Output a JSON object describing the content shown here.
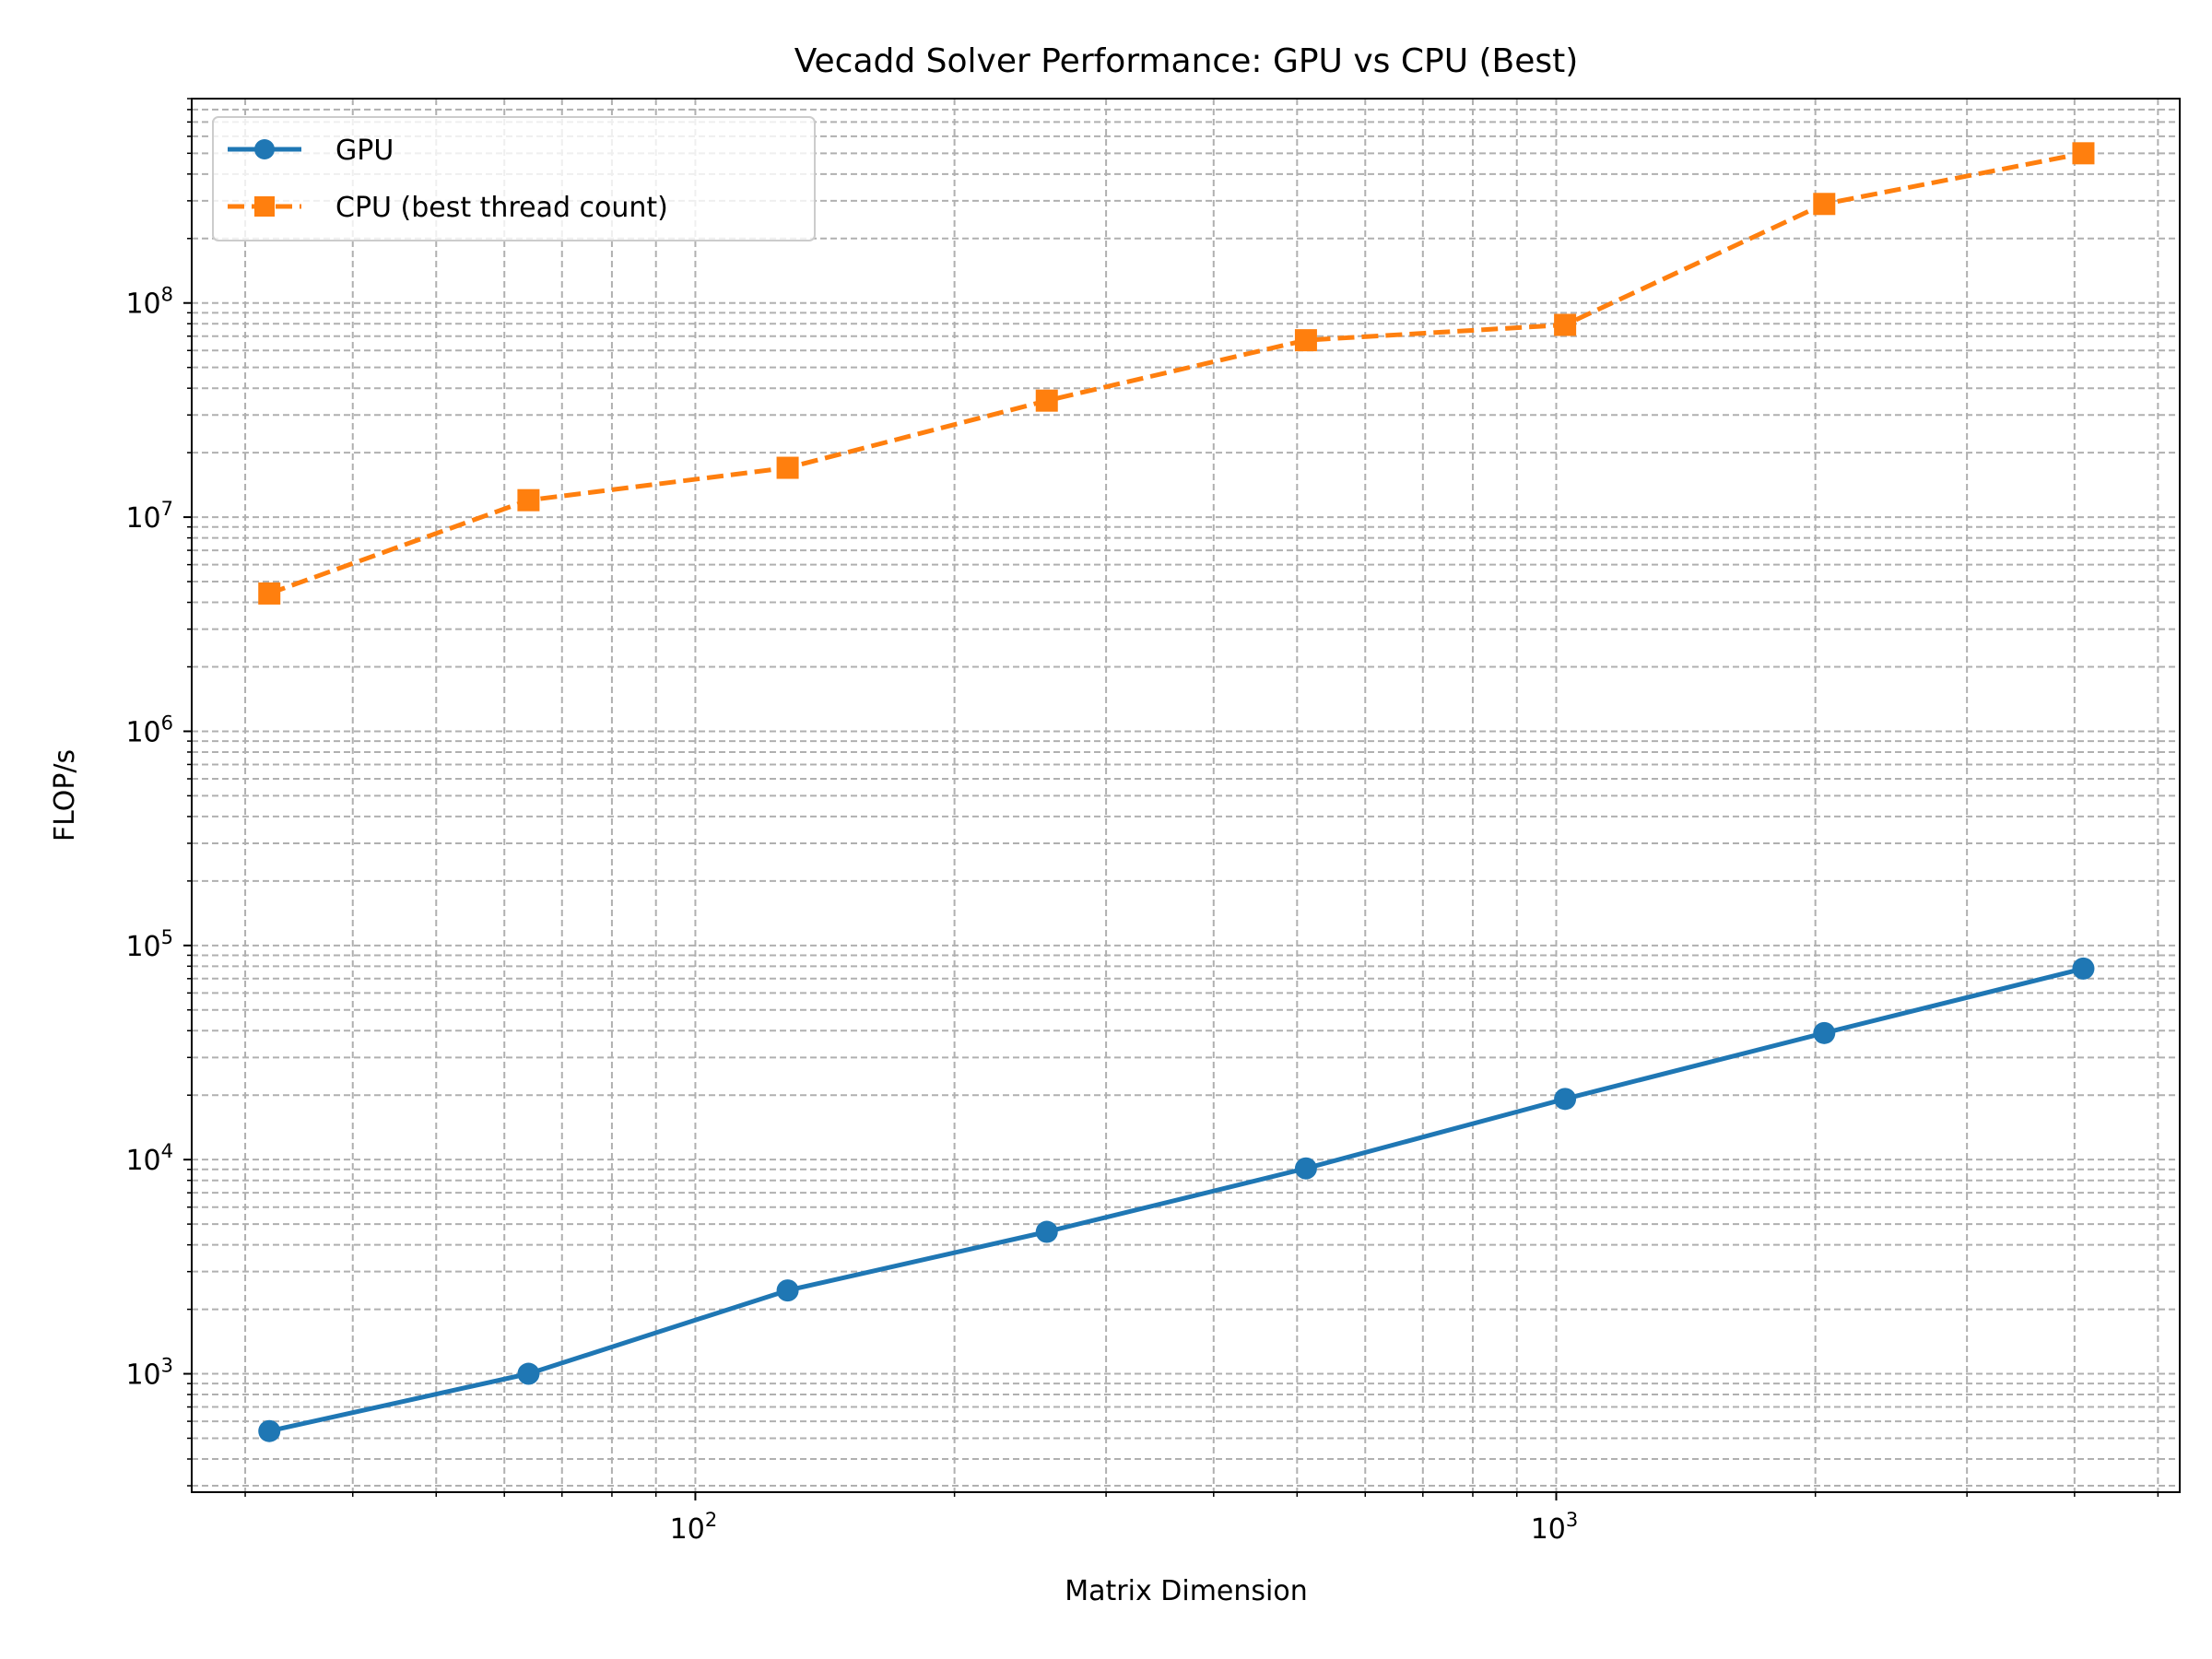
{
  "chart_data": {
    "type": "line",
    "title": "Vecadd Solver Performance: GPU vs CPU (Best)",
    "xlabel": "Matrix Dimension",
    "ylabel": "FLOP/s",
    "xscale": "log",
    "yscale": "log",
    "xlim": [
      26,
      5300
    ],
    "ylim": [
      280,
      900000000
    ],
    "grid": true,
    "legend": "top-left",
    "x": [
      32,
      64,
      128,
      256,
      512,
      1024,
      2048,
      4096
    ],
    "x_ticks": [
      {
        "value": 100,
        "base": "10",
        "exp": "2"
      },
      {
        "value": 1000,
        "base": "10",
        "exp": "3"
      }
    ],
    "y_ticks": [
      {
        "value": 1000,
        "base": "10",
        "exp": "3"
      },
      {
        "value": 10000,
        "base": "10",
        "exp": "4"
      },
      {
        "value": 100000,
        "base": "10",
        "exp": "5"
      },
      {
        "value": 1000000,
        "base": "10",
        "exp": "6"
      },
      {
        "value": 10000000,
        "base": "10",
        "exp": "7"
      },
      {
        "value": 100000000,
        "base": "10",
        "exp": "8"
      }
    ],
    "series": [
      {
        "name": "GPU",
        "color": "#1f77b4",
        "style": "solid",
        "marker": "circle",
        "values": [
          540,
          1000,
          2450,
          4600,
          9100,
          19200,
          39000,
          78000
        ]
      },
      {
        "name": "CPU (best thread count)",
        "color": "#ff7f0e",
        "style": "dashed",
        "marker": "square",
        "values": [
          4400000,
          12000000,
          17000000,
          35000000,
          67000000,
          79000000,
          290000000,
          500000000
        ]
      }
    ]
  }
}
